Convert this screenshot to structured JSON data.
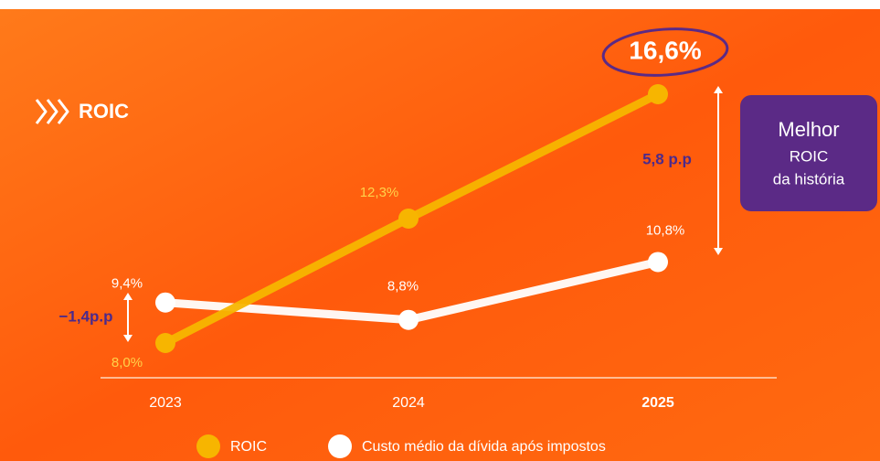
{
  "chart_data": {
    "type": "line",
    "title": "ROIC",
    "categories": [
      "2023",
      "2024",
      "2025"
    ],
    "series": [
      {
        "name": "ROIC",
        "color": "#f7b500",
        "values": [
          8.0,
          12.3,
          16.6
        ],
        "value_labels": [
          "8,0%",
          "12,3%",
          "16,6%"
        ]
      },
      {
        "name": "Custo médio da dívida após impostos",
        "color": "#ffffff",
        "values": [
          9.4,
          8.8,
          10.8
        ],
        "value_labels": [
          "9,4%",
          "8,8%",
          "10,8%"
        ]
      }
    ],
    "annotations": [
      "−1,4p.p",
      "5,8 p.p"
    ],
    "callout": [
      "Melhor",
      "ROIC",
      "da história"
    ]
  }
}
